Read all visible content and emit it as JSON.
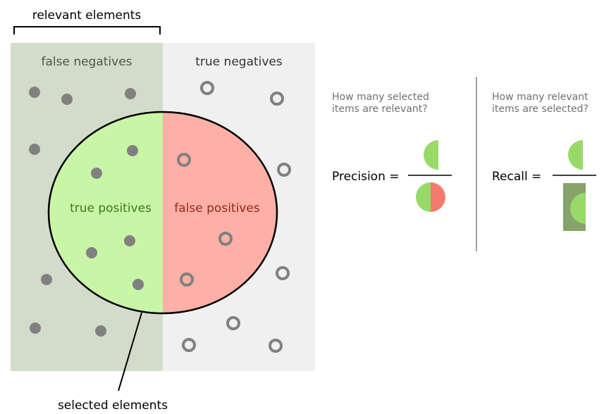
{
  "labels": {
    "relevant": "relevant elements",
    "false_negatives": "false negatives",
    "true_negatives": "true negatives",
    "true_positives": "true positives",
    "false_positives": "false positives",
    "selected": "selected elements"
  },
  "precision": {
    "question_line1": "How many selected",
    "question_line2": "items are relevant?",
    "label": "Precision ="
  },
  "recall": {
    "question_line1": "How many relevant",
    "question_line2": "items are selected?",
    "label": "Recall ="
  },
  "colors": {
    "relevant_bg": "#d3dccb",
    "irrelevant_bg": "#f0f0f0",
    "true_positive": "#c9f5a6",
    "false_positive": "#ffb0a6",
    "dot": "#808080",
    "icon_green": "#99d96a",
    "icon_red": "#f47a6d",
    "icon_dark_green": "#86a36a",
    "text_fn": "#4a5a40",
    "text_tn": "#333333",
    "text_tp": "#3e7a1e",
    "text_fp": "#8a2a20",
    "question_text": "#707070"
  }
}
